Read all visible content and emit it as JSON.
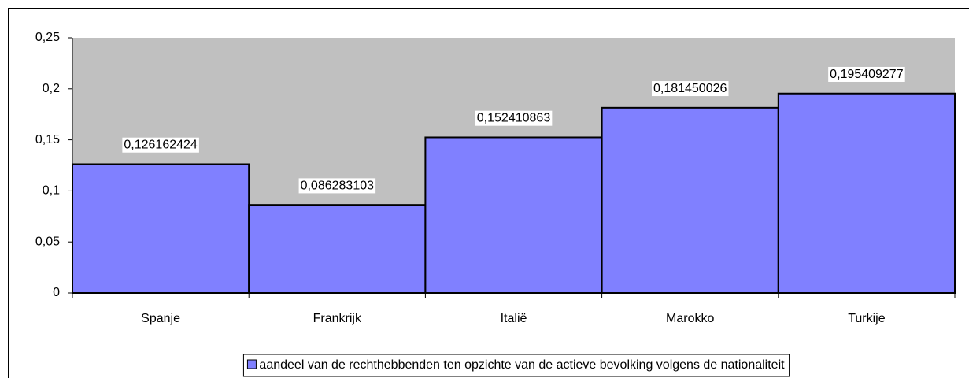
{
  "chart_data": {
    "type": "bar",
    "categories": [
      "Spanje",
      "Frankrijk",
      "Italië",
      "Marokko",
      "Turkije"
    ],
    "series": [
      {
        "name": "aandeel van de rechthebbenden ten opzichte van de actieve bevolking volgens de nationaliteit",
        "color": "#8080ff",
        "values": [
          0.126162424,
          0.086283103,
          0.152410863,
          0.181450026,
          0.195409277
        ],
        "value_labels": [
          "0,126162424",
          "0,086283103",
          "0,152410863",
          "0,181450026",
          "0,195409277"
        ]
      }
    ],
    "ylim": [
      0,
      0.25
    ],
    "yticks": [
      0,
      {
        "value": 0.05,
        "label": "0,05"
      },
      {
        "value": 0.1,
        "label": "0,1"
      },
      {
        "value": 0.15,
        "label": "0,15"
      },
      {
        "value": 0.2,
        "label": "0,2"
      },
      {
        "value": 0.25,
        "label": "0,25"
      }
    ],
    "plot_background": "#c0c0c0",
    "legend": "bottom"
  }
}
